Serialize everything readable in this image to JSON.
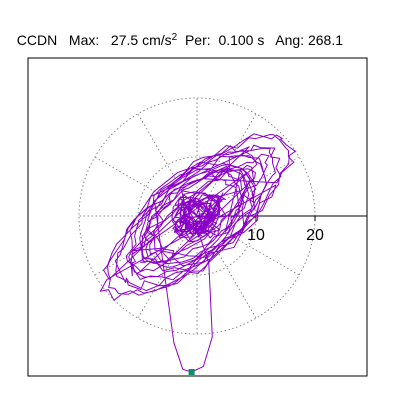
{
  "header": {
    "station": "CCDN",
    "max_label": "Max:",
    "max_value": "27.5",
    "max_unit": "cm/s",
    "max_exp": "2",
    "per_label": "Per:",
    "per_value": "0.100 s",
    "ang_label": "Ang:",
    "ang_value": "268.1"
  },
  "chart_data": {
    "type": "polar-trace",
    "ring_ticks": [
      10,
      20
    ],
    "ring_values": [
      10,
      20
    ],
    "radial_max": 30,
    "peak": {
      "magnitude": 27.5,
      "angle_deg": 268.1
    },
    "trace_color": "#8b00c8",
    "marker_color": "#0a8f6a",
    "grid": true
  }
}
